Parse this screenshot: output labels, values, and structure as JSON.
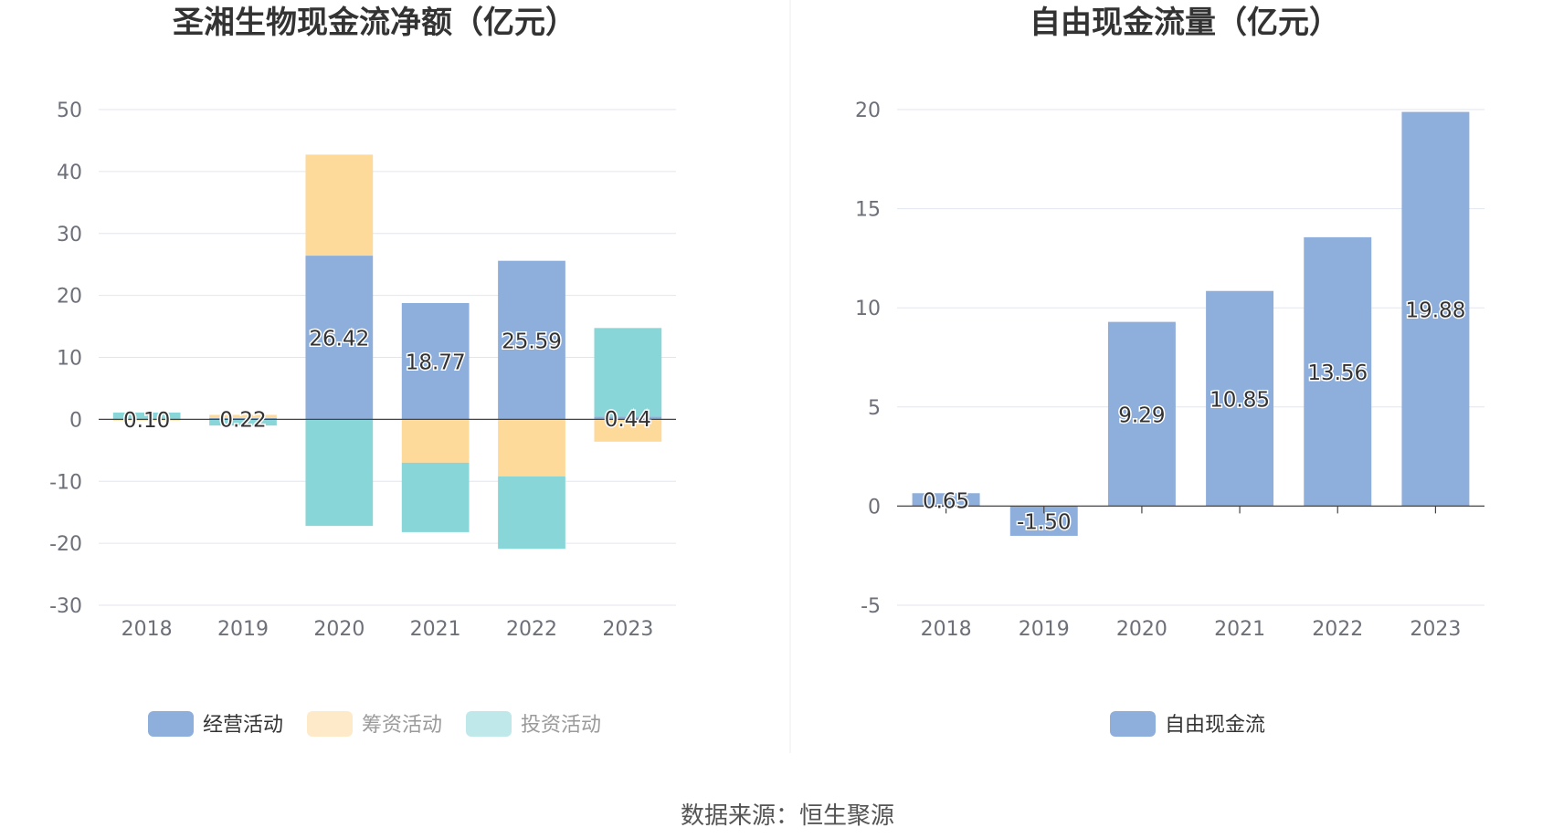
{
  "source": "数据来源：恒生聚源",
  "chart_data": [
    {
      "type": "bar",
      "stacked": true,
      "title": "圣湘生物现金流净额（亿元）",
      "categories": [
        "2018",
        "2019",
        "2020",
        "2021",
        "2022",
        "2023"
      ],
      "ylim": [
        -30,
        50
      ],
      "yticks": [
        "50",
        "40",
        "30",
        "20",
        "10",
        "0",
        "-10",
        "-20",
        "-30"
      ],
      "grid": true,
      "legend_position": "bottom",
      "series": [
        {
          "name": "经营活动",
          "color": "#8eaedb",
          "values": [
            0.1,
            0.22,
            26.42,
            18.77,
            25.59,
            0.44
          ]
        },
        {
          "name": "筹资活动",
          "color": "#fdd99a",
          "values": [
            -0.2,
            0.5,
            16.3,
            -7.0,
            -9.2,
            -3.6
          ]
        },
        {
          "name": "投资活动",
          "color": "#88d6d8",
          "values": [
            1.0,
            -1.0,
            -17.2,
            -11.2,
            -11.7,
            14.3
          ]
        }
      ],
      "data_labels": [
        "0.10",
        "0.22",
        "26.42",
        "18.77",
        "25.59",
        "0.44"
      ]
    },
    {
      "type": "bar",
      "title": "自由现金流量（亿元）",
      "categories": [
        "2018",
        "2019",
        "2020",
        "2021",
        "2022",
        "2023"
      ],
      "ylim": [
        -5,
        20
      ],
      "yticks": [
        "20",
        "15",
        "10",
        "5",
        "0",
        "-5"
      ],
      "grid": true,
      "legend_position": "bottom",
      "series": [
        {
          "name": "自由现金流",
          "color": "#8eaedb",
          "values": [
            0.65,
            -1.5,
            9.29,
            10.85,
            13.56,
            19.88
          ]
        }
      ],
      "data_labels": [
        "0.65",
        "-1.50",
        "9.29",
        "10.85",
        "13.56",
        "19.88"
      ]
    }
  ]
}
